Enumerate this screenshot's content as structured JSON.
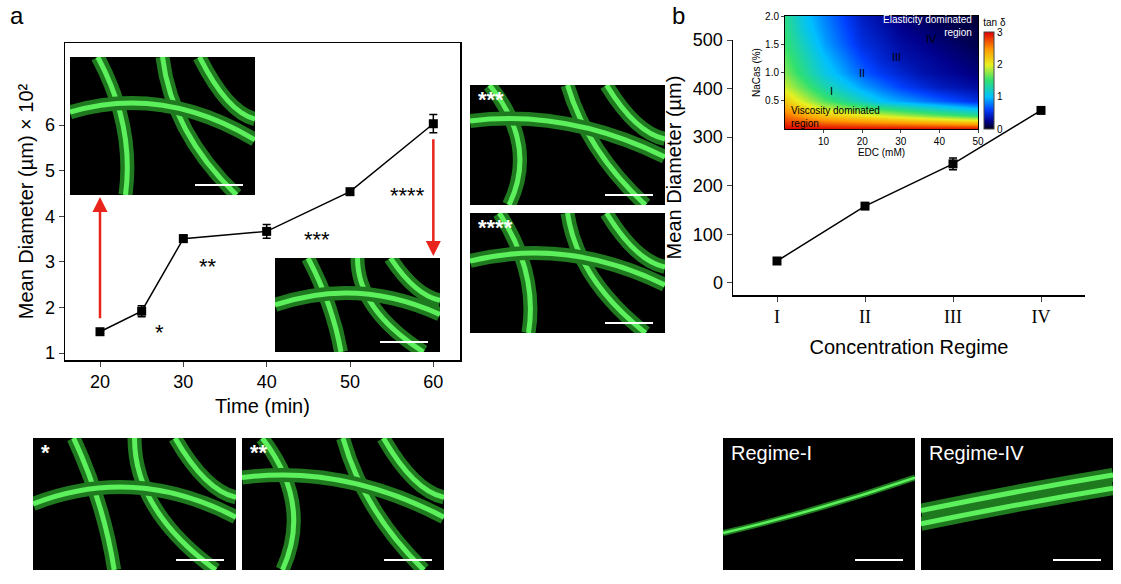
{
  "chart_data": [
    {
      "panel": "a",
      "type": "line",
      "x": [
        20,
        25,
        30,
        40,
        50,
        60
      ],
      "values": [
        1.47,
        1.92,
        3.51,
        3.67,
        4.54,
        6.03
      ],
      "errors": [
        0.03,
        0.12,
        0.08,
        0.15,
        0.03,
        0.2
      ],
      "x_label": "Time (min)",
      "y_label": "Mean Diameter (µm) × 10²",
      "xlim": [
        15.8,
        63.2
      ],
      "xticks": [
        20,
        30,
        40,
        50,
        60
      ],
      "ylim": [
        0.85,
        7.8
      ],
      "yticks": [
        1,
        2,
        3,
        4,
        5,
        6
      ],
      "color": "#000000",
      "marker": "square",
      "annotations": [
        {
          "x": 26.4,
          "y": 1.45,
          "text": "*"
        },
        {
          "x": 31.6,
          "y": 2.9,
          "text": "**"
        },
        {
          "x": 44.2,
          "y": 3.5,
          "text": "***"
        },
        {
          "x": 54.5,
          "y": 4.45,
          "text": "****"
        }
      ]
    },
    {
      "panel": "b",
      "type": "line",
      "categories": [
        "I",
        "II",
        "III",
        "IV"
      ],
      "values": [
        45,
        158,
        245,
        355
      ],
      "errors": [
        3,
        5,
        12,
        4
      ],
      "x_label": "Concentration Regime",
      "y_label": "Mean Diameter (µm)",
      "ylim": [
        -25,
        500
      ],
      "yticks": [
        0,
        100,
        200,
        300,
        400,
        500
      ],
      "color": "#000000",
      "marker": "square"
    },
    {
      "type": "heatmap",
      "x_label": "EDC (mM)",
      "y_label": "NaCas (%)",
      "x": [
        0,
        5,
        10,
        15,
        20,
        25,
        30,
        35,
        40,
        45,
        50
      ],
      "y": [
        0,
        0.25,
        0.5,
        0.75,
        1.0,
        1.25,
        1.5,
        1.75,
        2.0
      ],
      "cells": [
        [
          3,
          3,
          3,
          3,
          3,
          3,
          3,
          3,
          3,
          3,
          3
        ],
        [
          2.6,
          2.4,
          2.2,
          2.1,
          2.0,
          1.9,
          1.8,
          1.7,
          1.6,
          1.5,
          1.4
        ],
        [
          2.2,
          1.9,
          1.6,
          1.4,
          1.2,
          1.0,
          0.9,
          0.8,
          0.7,
          0.6,
          0.5
        ],
        [
          1.9,
          1.6,
          1.3,
          1.1,
          0.9,
          0.75,
          0.6,
          0.5,
          0.4,
          0.35,
          0.3
        ],
        [
          1.7,
          1.4,
          1.1,
          0.9,
          0.7,
          0.55,
          0.45,
          0.35,
          0.3,
          0.25,
          0.2
        ],
        [
          1.6,
          1.3,
          1.0,
          0.8,
          0.6,
          0.45,
          0.35,
          0.3,
          0.25,
          0.2,
          0.15
        ],
        [
          1.5,
          1.2,
          0.9,
          0.7,
          0.5,
          0.4,
          0.3,
          0.25,
          0.2,
          0.15,
          0.1
        ],
        [
          1.45,
          1.1,
          0.85,
          0.65,
          0.45,
          0.35,
          0.25,
          0.2,
          0.15,
          0.1,
          0.1
        ],
        [
          1.4,
          1.05,
          0.8,
          0.6,
          0.4,
          0.3,
          0.2,
          0.15,
          0.1,
          0.1,
          0.05
        ]
      ],
      "xlim": [
        0,
        50
      ],
      "xticks": [
        10,
        20,
        30,
        40,
        50
      ],
      "ylim": [
        0,
        2
      ],
      "yticks": [
        0.5,
        {
          "value": 1.0,
          "label": "1.0"
        },
        1.5,
        {
          "value": 2.0,
          "label": "2.0"
        }
      ],
      "colorbar": {
        "title": "tan δ",
        "range": [
          0,
          3
        ],
        "ticks": [
          0,
          1,
          2,
          3
        ]
      },
      "annotations": [
        {
          "x": 49,
          "y": 1.82,
          "text": "Elasticity dominated region",
          "color": "#ffffff"
        },
        {
          "x": 1,
          "y": 0.22,
          "text": "Viscosity dominated region",
          "color": "#000000"
        },
        {
          "x": 12,
          "y": 0.68,
          "text": "I",
          "color": "#000000"
        },
        {
          "x": 20,
          "y": 1.0,
          "text": "II",
          "color": "#000000"
        },
        {
          "x": 29,
          "y": 1.28,
          "text": "III",
          "color": "#000000"
        },
        {
          "x": 38,
          "y": 1.6,
          "text": "IV",
          "color": "#000000"
        }
      ]
    }
  ],
  "images": [
    {
      "panel": "a",
      "label": "***"
    },
    {
      "panel": "a",
      "label": "****"
    },
    {
      "panel": "a",
      "label": "*"
    },
    {
      "panel": "a",
      "label": "**"
    },
    {
      "panel": "b",
      "label": "Regime-I"
    },
    {
      "panel": "b",
      "label": "Regime-IV"
    }
  ]
}
